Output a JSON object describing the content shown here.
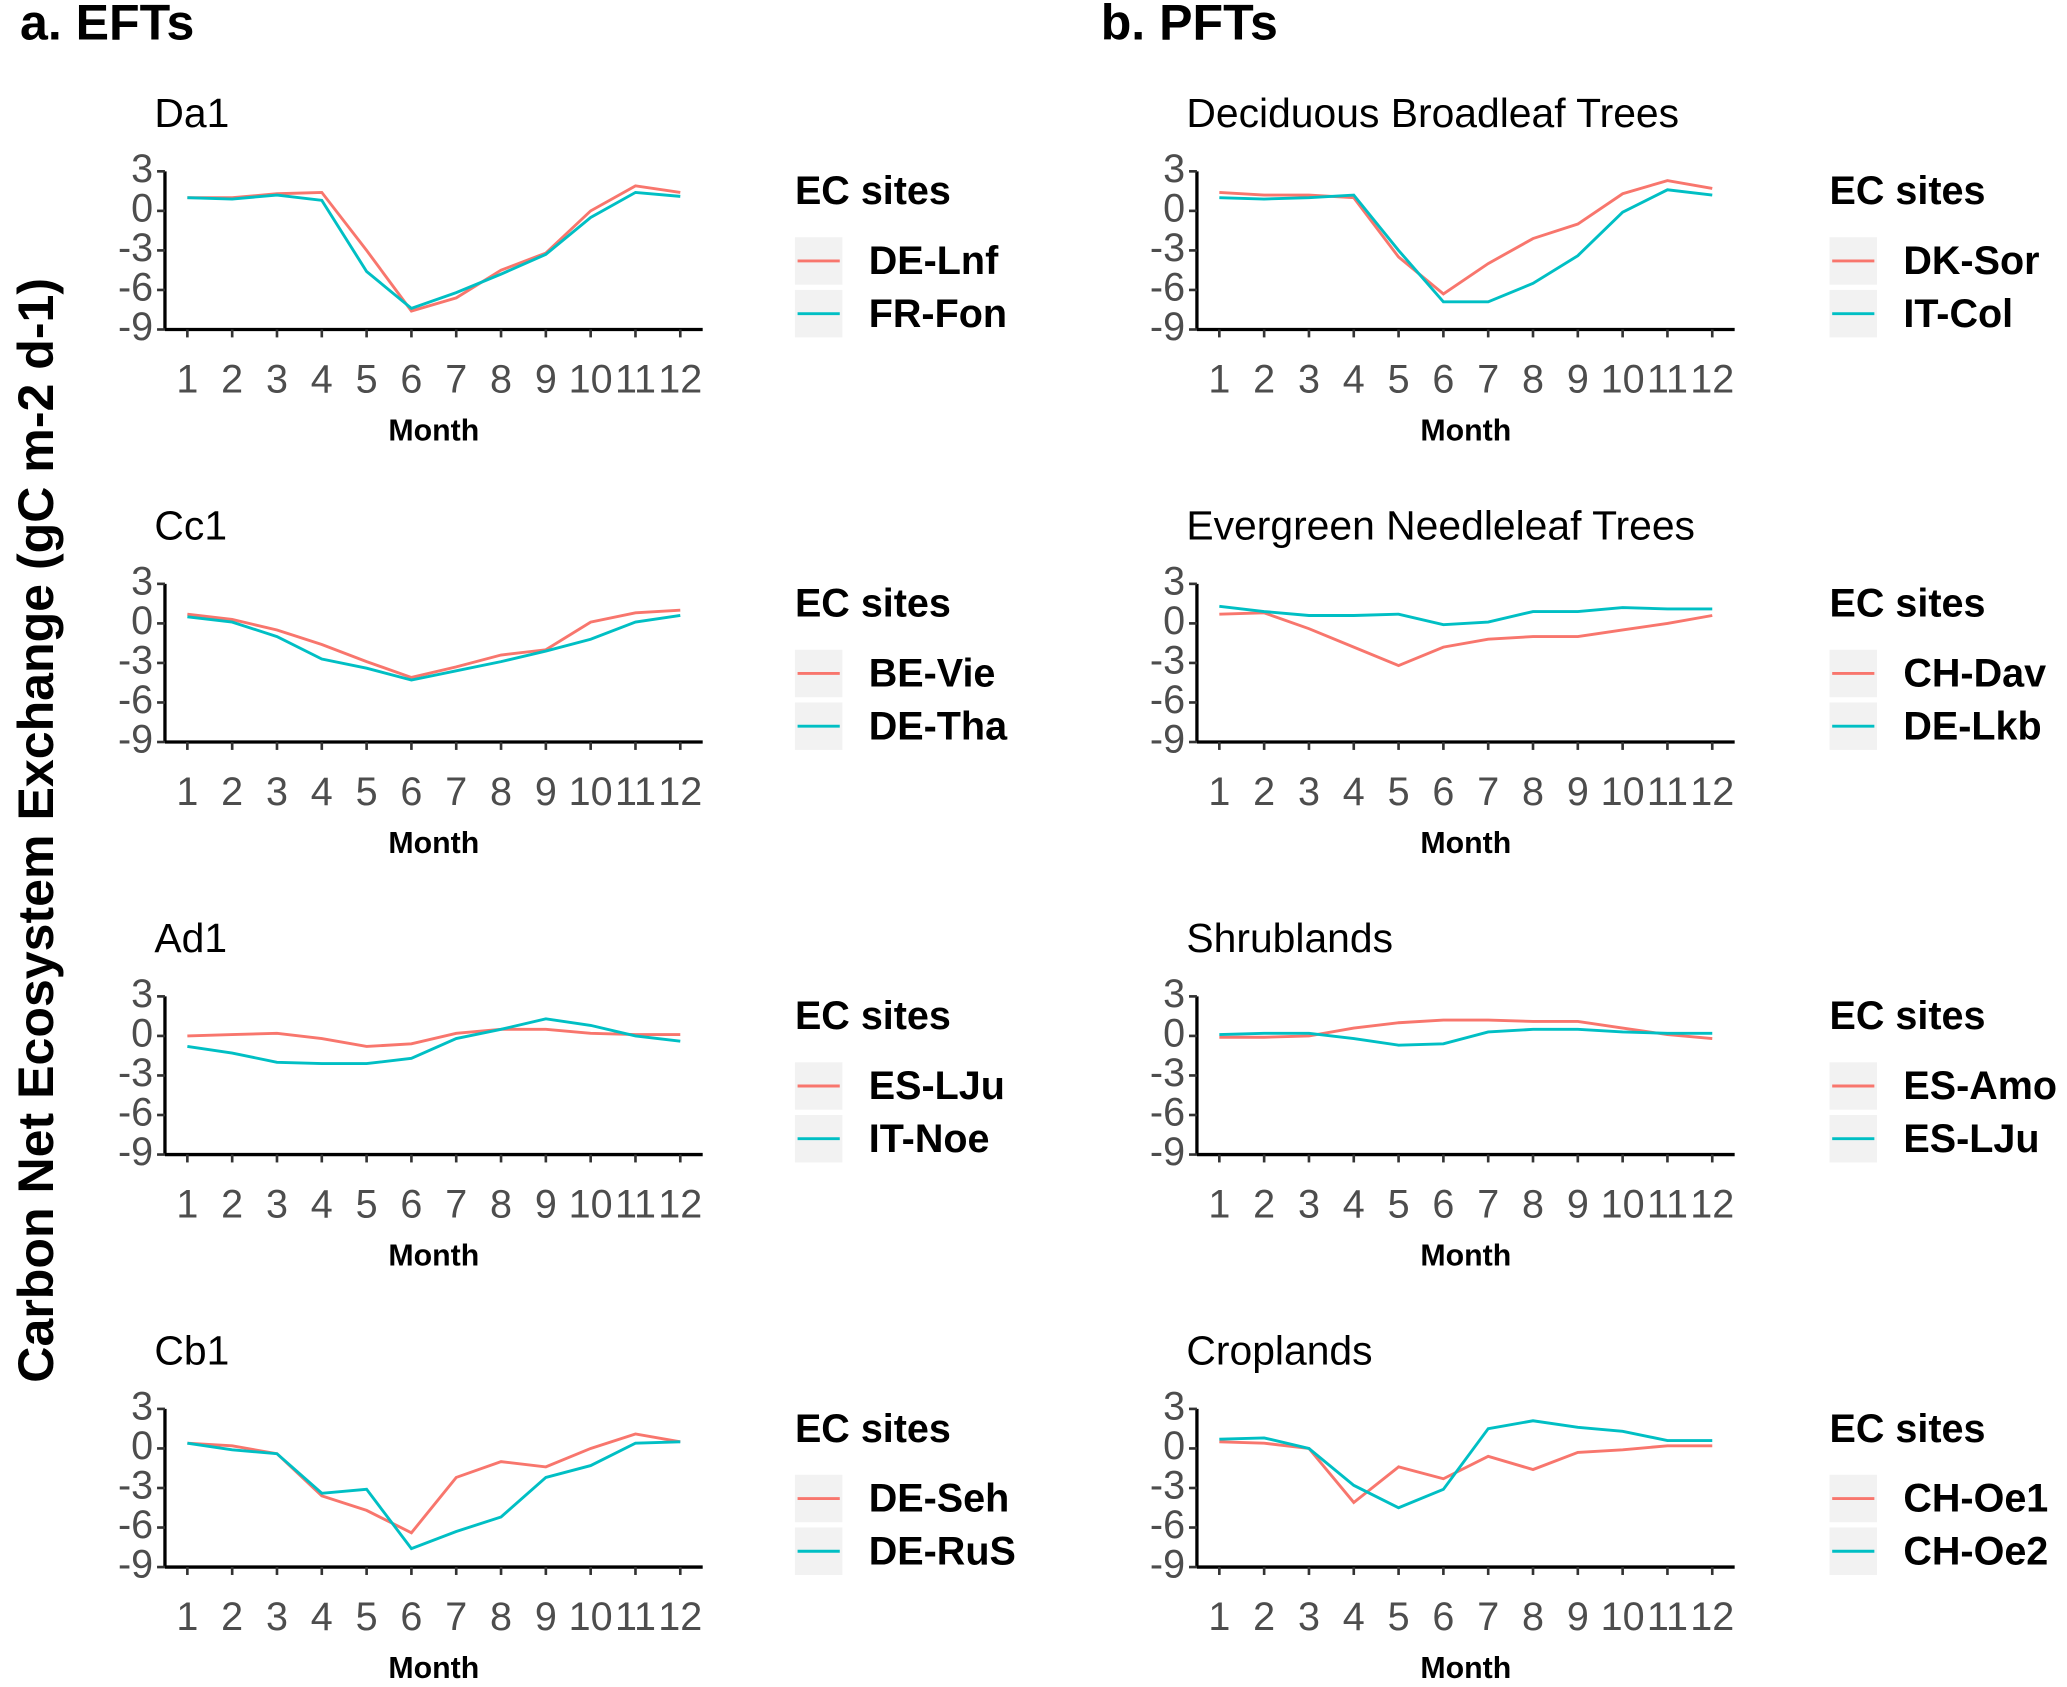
{
  "panels": [
    "a. EFTs",
    "b. PFTs"
  ],
  "ylabel": "Carbon Net Ecosystem Exchange (gC m-2 d-1)",
  "chart_data": [
    {
      "type": "line",
      "title": "Da1",
      "xlabel": "Month",
      "legend_title": "EC sites",
      "x": [
        1,
        2,
        3,
        4,
        5,
        6,
        7,
        8,
        9,
        10,
        11,
        12
      ],
      "xlim": [
        0.5,
        12.5
      ],
      "xticks": [
        1,
        2,
        3,
        4,
        5,
        6,
        7,
        8,
        9,
        10,
        11,
        12
      ],
      "ylim": [
        -9,
        3
      ],
      "yticks": [
        3,
        0,
        -3,
        -6,
        -9
      ],
      "series": [
        {
          "name": "DE-Lnf",
          "color": "#F8766D",
          "values": [
            1,
            1,
            1.3,
            1.4,
            -3,
            -7.6,
            -6.6,
            -4.5,
            -3.2,
            0,
            1.9,
            1.4
          ]
        },
        {
          "name": "FR-Fon",
          "color": "#00BFC4",
          "values": [
            1,
            0.9,
            1.2,
            0.8,
            -4.6,
            -7.4,
            -6.2,
            -4.8,
            -3.3,
            -0.5,
            1.4,
            1.1
          ]
        }
      ]
    },
    {
      "type": "line",
      "title": "Cc1",
      "xlabel": "Month",
      "legend_title": "EC sites",
      "x": [
        1,
        2,
        3,
        4,
        5,
        6,
        7,
        8,
        9,
        10,
        11,
        12
      ],
      "xlim": [
        0.5,
        12.5
      ],
      "xticks": [
        1,
        2,
        3,
        4,
        5,
        6,
        7,
        8,
        9,
        10,
        11,
        12
      ],
      "ylim": [
        -9,
        3
      ],
      "yticks": [
        3,
        0,
        -3,
        -6,
        -9
      ],
      "series": [
        {
          "name": "BE-Vie",
          "color": "#F8766D",
          "values": [
            0.7,
            0.3,
            -0.5,
            -1.6,
            -2.9,
            -4.1,
            -3.3,
            -2.4,
            -2,
            0.1,
            0.8,
            1
          ]
        },
        {
          "name": "DE-Tha",
          "color": "#00BFC4",
          "values": [
            0.5,
            0.1,
            -1,
            -2.7,
            -3.4,
            -4.3,
            -3.6,
            -2.9,
            -2.1,
            -1.2,
            0.1,
            0.6
          ]
        }
      ]
    },
    {
      "type": "line",
      "title": "Ad1",
      "xlabel": "Month",
      "legend_title": "EC sites",
      "x": [
        1,
        2,
        3,
        4,
        5,
        6,
        7,
        8,
        9,
        10,
        11,
        12
      ],
      "xlim": [
        0.5,
        12.5
      ],
      "xticks": [
        1,
        2,
        3,
        4,
        5,
        6,
        7,
        8,
        9,
        10,
        11,
        12
      ],
      "ylim": [
        -9,
        3
      ],
      "yticks": [
        3,
        0,
        -3,
        -6,
        -9
      ],
      "series": [
        {
          "name": "ES-LJu",
          "color": "#F8766D",
          "values": [
            0,
            0.1,
            0.2,
            -0.2,
            -0.8,
            -0.6,
            0.2,
            0.5,
            0.5,
            0.2,
            0.1,
            0.1
          ]
        },
        {
          "name": "IT-Noe",
          "color": "#00BFC4",
          "values": [
            -0.8,
            -1.3,
            -2,
            -2.1,
            -2.1,
            -1.7,
            -0.2,
            0.5,
            1.3,
            0.8,
            0,
            -0.4
          ]
        }
      ]
    },
    {
      "type": "line",
      "title": "Cb1",
      "xlabel": "Month",
      "legend_title": "EC sites",
      "x": [
        1,
        2,
        3,
        4,
        5,
        6,
        7,
        8,
        9,
        10,
        11,
        12
      ],
      "xlim": [
        0.5,
        12.5
      ],
      "xticks": [
        1,
        2,
        3,
        4,
        5,
        6,
        7,
        8,
        9,
        10,
        11,
        12
      ],
      "ylim": [
        -9,
        3
      ],
      "yticks": [
        3,
        0,
        -3,
        -6,
        -9
      ],
      "series": [
        {
          "name": "DE-Seh",
          "color": "#F8766D",
          "values": [
            0.4,
            0.2,
            -0.4,
            -3.6,
            -4.7,
            -6.4,
            -2.2,
            -1,
            -1.4,
            0,
            1.1,
            0.5
          ]
        },
        {
          "name": "DE-RuS",
          "color": "#00BFC4",
          "values": [
            0.4,
            -0.1,
            -0.4,
            -3.4,
            -3.1,
            -7.6,
            -6.3,
            -5.2,
            -2.2,
            -1.3,
            0.4,
            0.5
          ]
        }
      ]
    },
    {
      "type": "line",
      "title": "Deciduous Broadleaf Trees",
      "xlabel": "Month",
      "legend_title": "EC sites",
      "x": [
        1,
        2,
        3,
        4,
        5,
        6,
        7,
        8,
        9,
        10,
        11,
        12
      ],
      "xlim": [
        0.5,
        12.5
      ],
      "xticks": [
        1,
        2,
        3,
        4,
        5,
        6,
        7,
        8,
        9,
        10,
        11,
        12
      ],
      "ylim": [
        -9,
        3
      ],
      "yticks": [
        3,
        0,
        -3,
        -6,
        -9
      ],
      "series": [
        {
          "name": "DK-Sor",
          "color": "#F8766D",
          "values": [
            1.4,
            1.2,
            1.2,
            1,
            -3.5,
            -6.3,
            -4,
            -2.1,
            -1,
            1.3,
            2.3,
            1.7
          ]
        },
        {
          "name": "IT-Col",
          "color": "#00BFC4",
          "values": [
            1,
            0.9,
            1,
            1.2,
            -3,
            -6.9,
            -6.9,
            -5.5,
            -3.4,
            -0.1,
            1.6,
            1.2
          ]
        }
      ]
    },
    {
      "type": "line",
      "title": "Evergreen Needleleaf Trees",
      "xlabel": "Month",
      "legend_title": "EC sites",
      "x": [
        1,
        2,
        3,
        4,
        5,
        6,
        7,
        8,
        9,
        10,
        11,
        12
      ],
      "xlim": [
        0.5,
        12.5
      ],
      "xticks": [
        1,
        2,
        3,
        4,
        5,
        6,
        7,
        8,
        9,
        10,
        11,
        12
      ],
      "ylim": [
        -9,
        3
      ],
      "yticks": [
        3,
        0,
        -3,
        -6,
        -9
      ],
      "series": [
        {
          "name": "CH-Dav",
          "color": "#F8766D",
          "values": [
            0.7,
            0.8,
            -0.4,
            -1.8,
            -3.2,
            -1.8,
            -1.2,
            -1,
            -1,
            -0.5,
            0,
            0.6
          ]
        },
        {
          "name": "DE-Lkb",
          "color": "#00BFC4",
          "values": [
            1.3,
            0.9,
            0.6,
            0.6,
            0.7,
            -0.1,
            0.1,
            0.9,
            0.9,
            1.2,
            1.1,
            1.1
          ]
        }
      ]
    },
    {
      "type": "line",
      "title": "Shrublands",
      "xlabel": "Month",
      "legend_title": "EC sites",
      "x": [
        1,
        2,
        3,
        4,
        5,
        6,
        7,
        8,
        9,
        10,
        11,
        12
      ],
      "xlim": [
        0.5,
        12.5
      ],
      "xticks": [
        1,
        2,
        3,
        4,
        5,
        6,
        7,
        8,
        9,
        10,
        11,
        12
      ],
      "ylim": [
        -9,
        3
      ],
      "yticks": [
        3,
        0,
        -3,
        -6,
        -9
      ],
      "series": [
        {
          "name": "ES-Amo",
          "color": "#F8766D",
          "values": [
            -0.1,
            -0.1,
            0,
            0.6,
            1,
            1.2,
            1.2,
            1.1,
            1.1,
            0.6,
            0.1,
            -0.2
          ]
        },
        {
          "name": "ES-LJu",
          "color": "#00BFC4",
          "values": [
            0.1,
            0.2,
            0.2,
            -0.2,
            -0.7,
            -0.6,
            0.3,
            0.5,
            0.5,
            0.3,
            0.2,
            0.2
          ]
        }
      ]
    },
    {
      "type": "line",
      "title": "Croplands",
      "xlabel": "Month",
      "legend_title": "EC sites",
      "x": [
        1,
        2,
        3,
        4,
        5,
        6,
        7,
        8,
        9,
        10,
        11,
        12
      ],
      "xlim": [
        0.5,
        12.5
      ],
      "xticks": [
        1,
        2,
        3,
        4,
        5,
        6,
        7,
        8,
        9,
        10,
        11,
        12
      ],
      "ylim": [
        -9,
        3
      ],
      "yticks": [
        3,
        0,
        -3,
        -6,
        -9
      ],
      "series": [
        {
          "name": "CH-Oe1",
          "color": "#F8766D",
          "values": [
            0.5,
            0.4,
            0,
            -4.1,
            -1.4,
            -2.3,
            -0.6,
            -1.6,
            -0.3,
            -0.1,
            0.2,
            0.2
          ]
        },
        {
          "name": "CH-Oe2",
          "color": "#00BFC4",
          "values": [
            0.7,
            0.8,
            0,
            -2.8,
            -4.5,
            -3.1,
            1.5,
            2.1,
            1.6,
            1.3,
            0.6,
            0.6
          ]
        }
      ]
    }
  ]
}
